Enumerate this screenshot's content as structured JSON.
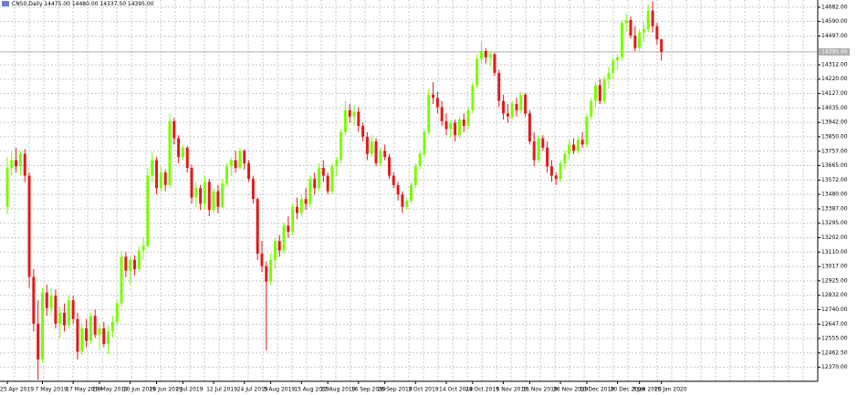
{
  "chart_data": {
    "type": "candlestick",
    "title": "CN50,Daily  14475.00 14480.00 14337.50 14395.00",
    "up_color": "#7cfc00",
    "down_color": "#e01b1b",
    "grid": true,
    "ylim": [
      12280,
      14728
    ],
    "yticks": [
      {
        "value": 14682,
        "label": "14682.00"
      },
      {
        "value": 14590,
        "label": "14590.00"
      },
      {
        "value": 14497,
        "label": "14497.00"
      },
      {
        "value": 14312,
        "label": "14312.00"
      },
      {
        "value": 14220,
        "label": "14220.00"
      },
      {
        "value": 14127,
        "label": "14127.00"
      },
      {
        "value": 14035,
        "label": "14035.00"
      },
      {
        "value": 13942,
        "label": "13942.00"
      },
      {
        "value": 13850,
        "label": "13850.00"
      },
      {
        "value": 13757,
        "label": "13757.00"
      },
      {
        "value": 13665,
        "label": "13665.00"
      },
      {
        "value": 13572,
        "label": "13572.00"
      },
      {
        "value": 13480,
        "label": "13480.00"
      },
      {
        "value": 13387,
        "label": "13387.00"
      },
      {
        "value": 13295,
        "label": "13295.00"
      },
      {
        "value": 13202,
        "label": "13202.00"
      },
      {
        "value": 13110,
        "label": "13110.00"
      },
      {
        "value": 13017,
        "label": "13017.00"
      },
      {
        "value": 12925,
        "label": "12925.00"
      },
      {
        "value": 12832,
        "label": "12832.00"
      },
      {
        "value": 12740,
        "label": "12740.00"
      },
      {
        "value": 12647,
        "label": "12647.00"
      },
      {
        "value": 12555,
        "label": "12555.00"
      },
      {
        "value": 12462.5,
        "label": "12462.50"
      },
      {
        "value": 12370,
        "label": "12370.00"
      }
    ],
    "current_price": {
      "value": 14395,
      "label": "14395.00"
    },
    "x_labels": [
      {
        "bar": 0,
        "label": "25 Apr 2019"
      },
      {
        "bar": 8,
        "label": "7 May 2019"
      },
      {
        "bar": 15,
        "label": "17 May 2019"
      },
      {
        "bar": 21,
        "label": "29 May 2019"
      },
      {
        "bar": 28,
        "label": "10 Jun 2019"
      },
      {
        "bar": 34,
        "label": "20 Jun 2019"
      },
      {
        "bar": 40,
        "label": "2 Jul 2019"
      },
      {
        "bar": 47,
        "label": "12 Jul 2019"
      },
      {
        "bar": 54,
        "label": "24 Jul 2019"
      },
      {
        "bar": 60,
        "label": "5 Aug 2019"
      },
      {
        "bar": 67,
        "label": "15 Aug 2019"
      },
      {
        "bar": 73,
        "label": "27 Aug 2019"
      },
      {
        "bar": 80,
        "label": "16 Sep 2019"
      },
      {
        "bar": 86,
        "label": "26 Sep 2019"
      },
      {
        "bar": 93,
        "label": "2 Oct 2019"
      },
      {
        "bar": 100,
        "label": "14 Oct 2019"
      },
      {
        "bar": 106,
        "label": "24 Oct 2019"
      },
      {
        "bar": 113,
        "label": "5 Nov 2019"
      },
      {
        "bar": 119,
        "label": "15 Nov 2019"
      },
      {
        "bar": 126,
        "label": "26 Nov 2019"
      },
      {
        "bar": 132,
        "label": "10 Dec 2019"
      },
      {
        "bar": 139,
        "label": "20 Dec 2019"
      },
      {
        "bar": 144,
        "label": "3 Jan 2020"
      },
      {
        "bar": 149,
        "label": "15 Jan 2020"
      }
    ],
    "candles": [
      [
        13400,
        13720,
        13350,
        13650
      ],
      [
        13650,
        13760,
        13600,
        13700
      ],
      [
        13700,
        13780,
        13620,
        13660
      ],
      [
        13660,
        13760,
        13600,
        13740
      ],
      [
        13740,
        13770,
        13560,
        13600
      ],
      [
        13600,
        13620,
        12880,
        12950
      ],
      [
        12950,
        13000,
        12600,
        12650
      ],
      [
        12650,
        12800,
        12290,
        12420
      ],
      [
        12420,
        12880,
        12400,
        12850
      ],
      [
        12850,
        12900,
        12700,
        12750
      ],
      [
        12750,
        12880,
        12700,
        12830
      ],
      [
        12830,
        12870,
        12620,
        12650
      ],
      [
        12650,
        12760,
        12560,
        12720
      ],
      [
        12720,
        12780,
        12600,
        12640
      ],
      [
        12640,
        12830,
        12620,
        12800
      ],
      [
        12800,
        12830,
        12650,
        12680
      ],
      [
        12680,
        12720,
        12420,
        12470
      ],
      [
        12470,
        12650,
        12450,
        12620
      ],
      [
        12620,
        12680,
        12500,
        12540
      ],
      [
        12540,
        12720,
        12520,
        12700
      ],
      [
        12700,
        12740,
        12560,
        12580
      ],
      [
        12580,
        12650,
        12480,
        12620
      ],
      [
        12620,
        12660,
        12500,
        12520
      ],
      [
        12520,
        12640,
        12450,
        12600
      ],
      [
        12600,
        12700,
        12560,
        12660
      ],
      [
        12660,
        12800,
        12640,
        12780
      ],
      [
        12780,
        13120,
        12760,
        13080
      ],
      [
        13080,
        13110,
        12950,
        12990
      ],
      [
        12990,
        13080,
        12900,
        13060
      ],
      [
        13060,
        13090,
        12960,
        13000
      ],
      [
        13000,
        13150,
        12980,
        13120
      ],
      [
        13120,
        13200,
        13060,
        13150
      ],
      [
        13150,
        13650,
        13140,
        13600
      ],
      [
        13600,
        13750,
        13560,
        13700
      ],
      [
        13700,
        13720,
        13480,
        13520
      ],
      [
        13520,
        13660,
        13500,
        13620
      ],
      [
        13620,
        13640,
        13500,
        13540
      ],
      [
        13540,
        14000,
        13520,
        13950
      ],
      [
        13950,
        13970,
        13800,
        13840
      ],
      [
        13840,
        13860,
        13680,
        13720
      ],
      [
        13720,
        13800,
        13700,
        13780
      ],
      [
        13780,
        13790,
        13620,
        13650
      ],
      [
        13650,
        13670,
        13420,
        13460
      ],
      [
        13460,
        13560,
        13400,
        13520
      ],
      [
        13520,
        13540,
        13380,
        13420
      ],
      [
        13420,
        13600,
        13380,
        13560
      ],
      [
        13560,
        13580,
        13340,
        13380
      ],
      [
        13380,
        13520,
        13360,
        13500
      ],
      [
        13500,
        13540,
        13360,
        13400
      ],
      [
        13400,
        13580,
        13390,
        13550
      ],
      [
        13550,
        13680,
        13530,
        13660
      ],
      [
        13660,
        13720,
        13600,
        13700
      ],
      [
        13700,
        13760,
        13620,
        13650
      ],
      [
        13650,
        13780,
        13640,
        13760
      ],
      [
        13760,
        13770,
        13640,
        13680
      ],
      [
        13680,
        13700,
        13560,
        13580
      ],
      [
        13580,
        13600,
        13420,
        13450
      ],
      [
        13450,
        13460,
        13060,
        13100
      ],
      [
        13100,
        13180,
        12980,
        13020
      ],
      [
        13020,
        13050,
        12480,
        12920
      ],
      [
        12920,
        13100,
        12900,
        13060
      ],
      [
        13060,
        13200,
        13000,
        13180
      ],
      [
        13180,
        13220,
        13080,
        13120
      ],
      [
        13120,
        13300,
        13100,
        13280
      ],
      [
        13280,
        13340,
        13200,
        13240
      ],
      [
        13240,
        13420,
        13220,
        13400
      ],
      [
        13400,
        13460,
        13320,
        13360
      ],
      [
        13360,
        13480,
        13340,
        13450
      ],
      [
        13450,
        13520,
        13380,
        13420
      ],
      [
        13420,
        13600,
        13400,
        13580
      ],
      [
        13580,
        13620,
        13480,
        13520
      ],
      [
        13520,
        13680,
        13500,
        13650
      ],
      [
        13650,
        13700,
        13560,
        13600
      ],
      [
        13600,
        13620,
        13480,
        13500
      ],
      [
        13500,
        13680,
        13480,
        13660
      ],
      [
        13660,
        13720,
        13600,
        13700
      ],
      [
        13700,
        13900,
        13680,
        13880
      ],
      [
        13880,
        14080,
        13860,
        14020
      ],
      [
        14020,
        14060,
        13940,
        13980
      ],
      [
        13980,
        14050,
        13920,
        14010
      ],
      [
        14010,
        14040,
        13880,
        13920
      ],
      [
        13920,
        13940,
        13820,
        13850
      ],
      [
        13850,
        13880,
        13700,
        13740
      ],
      [
        13740,
        13860,
        13720,
        13820
      ],
      [
        13820,
        13840,
        13660,
        13680
      ],
      [
        13680,
        13780,
        13660,
        13760
      ],
      [
        13760,
        13800,
        13700,
        13720
      ],
      [
        13720,
        13740,
        13580,
        13600
      ],
      [
        13600,
        13620,
        13520,
        13540
      ],
      [
        13540,
        13560,
        13440,
        13480
      ],
      [
        13480,
        13500,
        13360,
        13400
      ],
      [
        13400,
        13460,
        13380,
        13440
      ],
      [
        13440,
        13560,
        13420,
        13540
      ],
      [
        13540,
        13680,
        13520,
        13660
      ],
      [
        13660,
        13760,
        13640,
        13740
      ],
      [
        13740,
        13900,
        13720,
        13880
      ],
      [
        13880,
        14160,
        13860,
        14120
      ],
      [
        14120,
        14200,
        14060,
        14100
      ],
      [
        14100,
        14140,
        14000,
        14040
      ],
      [
        14040,
        14080,
        13920,
        13950
      ],
      [
        13950,
        14000,
        13860,
        13900
      ],
      [
        13900,
        13960,
        13840,
        13940
      ],
      [
        13940,
        13960,
        13820,
        13860
      ],
      [
        13860,
        13980,
        13840,
        13960
      ],
      [
        13960,
        14000,
        13880,
        13920
      ],
      [
        13920,
        14040,
        13900,
        14020
      ],
      [
        14020,
        14200,
        14000,
        14180
      ],
      [
        14180,
        14380,
        14160,
        14350
      ],
      [
        14350,
        14460,
        14320,
        14400
      ],
      [
        14400,
        14420,
        14320,
        14360
      ],
      [
        14360,
        14400,
        14300,
        14380
      ],
      [
        14380,
        14390,
        14240,
        14260
      ],
      [
        14260,
        14280,
        14040,
        14080
      ],
      [
        14080,
        14120,
        13960,
        14000
      ],
      [
        14000,
        14060,
        13940,
        13980
      ],
      [
        13980,
        14080,
        13960,
        14060
      ],
      [
        14060,
        14100,
        13980,
        14020
      ],
      [
        14020,
        14140,
        14000,
        14120
      ],
      [
        14120,
        14130,
        13980,
        14000
      ],
      [
        14000,
        14020,
        13800,
        13820
      ],
      [
        13820,
        13880,
        13660,
        13700
      ],
      [
        13700,
        13860,
        13680,
        13840
      ],
      [
        13840,
        13860,
        13760,
        13780
      ],
      [
        13780,
        13820,
        13620,
        13660
      ],
      [
        13660,
        13700,
        13560,
        13600
      ],
      [
        13600,
        13620,
        13540,
        13580
      ],
      [
        13580,
        13700,
        13560,
        13680
      ],
      [
        13680,
        13760,
        13640,
        13740
      ],
      [
        13740,
        13830,
        13700,
        13800
      ],
      [
        13800,
        13840,
        13740,
        13760
      ],
      [
        13760,
        13850,
        13740,
        13830
      ],
      [
        13830,
        13880,
        13780,
        13800
      ],
      [
        13800,
        14000,
        13780,
        13980
      ],
      [
        13980,
        14100,
        13960,
        14080
      ],
      [
        14080,
        14200,
        14040,
        14180
      ],
      [
        14180,
        14220,
        14060,
        14080
      ],
      [
        14080,
        14240,
        14060,
        14220
      ],
      [
        14220,
        14300,
        14160,
        14260
      ],
      [
        14260,
        14360,
        14220,
        14340
      ],
      [
        14340,
        14380,
        14280,
        14360
      ],
      [
        14360,
        14600,
        14340,
        14580
      ],
      [
        14580,
        14640,
        14520,
        14600
      ],
      [
        14600,
        14620,
        14480,
        14500
      ],
      [
        14500,
        14560,
        14400,
        14420
      ],
      [
        14420,
        14540,
        14400,
        14520
      ],
      [
        14520,
        14580,
        14460,
        14540
      ],
      [
        14540,
        14700,
        14520,
        14660
      ],
      [
        14660,
        14720,
        14520,
        14560
      ],
      [
        14560,
        14580,
        14440,
        14475
      ],
      [
        14475,
        14480,
        14337.5,
        14395
      ]
    ]
  }
}
